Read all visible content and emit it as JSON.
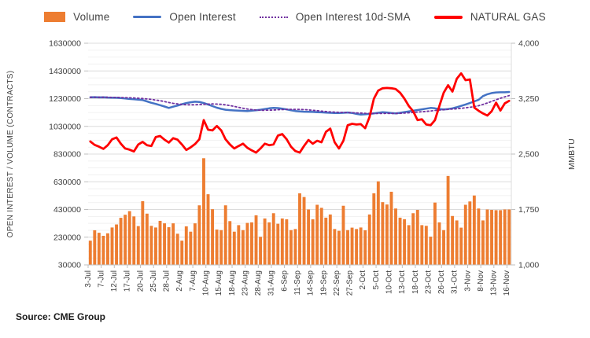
{
  "legend": [
    {
      "label": "Volume",
      "type": "bar",
      "color": "#ED7D31"
    },
    {
      "label": "Open Interest",
      "type": "line",
      "color": "#4472C4"
    },
    {
      "label": "Open Interest 10d-SMA",
      "type": "dotted",
      "color": "#7030A0"
    },
    {
      "label": "NATURAL GAS",
      "type": "line-thick",
      "color": "#FF0000"
    }
  ],
  "source": "Source: CME Group",
  "chart_data": {
    "type": "bar",
    "subtype": "combo-bar-line",
    "title": "",
    "xlabel": "",
    "left_axis": {
      "title": "OPEN INTEREST / VOLUME (CONTRACTS)",
      "min": 30000,
      "max": 1630000,
      "major_step": 200000,
      "minor_step": 50000,
      "tick_labels": [
        "1630000",
        "1430000",
        "1230000",
        "1030000",
        "830000",
        "630000",
        "430000",
        "230000",
        "30000"
      ]
    },
    "right_axis": {
      "title": "MMBTU",
      "min": 1000,
      "max": 4000,
      "major_step": 750,
      "tick_labels": [
        "4,000",
        "3,250",
        "2,500",
        "1,750",
        "1,000"
      ]
    },
    "x_label_every": 3,
    "x_labels_shown": [
      "3-Jul",
      "7-Jul",
      "12-Jul",
      "17-Jul",
      "20-Jul",
      "25-Jul",
      "28-Jul",
      "2-Aug",
      "7-Aug",
      "10-Aug",
      "15-Aug",
      "18-Aug",
      "23-Aug",
      "28-Aug",
      "31-Aug",
      "6-Sep",
      "11-Sep",
      "14-Sep",
      "19-Sep",
      "22-Sep",
      "27-Sep",
      "2-Oct",
      "5-Oct",
      "10-Oct",
      "13-Oct",
      "18-Oct",
      "23-Oct",
      "26-Oct",
      "31-Oct",
      "3-Nov",
      "8-Nov",
      "13-Nov",
      "16-Nov"
    ],
    "series": [
      {
        "name": "Volume",
        "type": "bar",
        "axis": "left",
        "color": "#ED7D31",
        "values": [
          205000,
          280000,
          262000,
          240000,
          258000,
          300000,
          322000,
          370000,
          392000,
          418000,
          380000,
          310000,
          490000,
          400000,
          312000,
          300000,
          348000,
          330000,
          302000,
          330000,
          255000,
          205000,
          308000,
          270000,
          330000,
          460000,
          800000,
          540000,
          432000,
          285000,
          281000,
          460000,
          346000,
          270000,
          317000,
          281000,
          333000,
          337000,
          388000,
          233000,
          365000,
          337000,
          403000,
          327000,
          365000,
          359000,
          281000,
          289000,
          547000,
          520000,
          430000,
          359000,
          464000,
          442000,
          371000,
          394000,
          289000,
          276000,
          457000,
          281000,
          299000,
          289000,
          300000,
          280000,
          394000,
          547000,
          633000,
          483000,
          466000,
          558000,
          437000,
          371000,
          360000,
          317000,
          403000,
          427000,
          317000,
          312000,
          234000,
          480000,
          337000,
          281000,
          672000,
          383000,
          351000,
          299000,
          464000,
          488000,
          531000,
          437000,
          351000,
          430000,
          427000,
          425000,
          425000,
          430000,
          430000
        ]
      },
      {
        "name": "Open Interest",
        "type": "line",
        "axis": "left",
        "color": "#4472C4",
        "values": [
          1240000,
          1241000,
          1239000,
          1240000,
          1238000,
          1237000,
          1236000,
          1234000,
          1231000,
          1228000,
          1226000,
          1223000,
          1220000,
          1210000,
          1200000,
          1192000,
          1183000,
          1173000,
          1163000,
          1172000,
          1180000,
          1190000,
          1198000,
          1204000,
          1208000,
          1206000,
          1198000,
          1188000,
          1176000,
          1165000,
          1156000,
          1150000,
          1147000,
          1145000,
          1143000,
          1142000,
          1141000,
          1143000,
          1146000,
          1150000,
          1155000,
          1160000,
          1163000,
          1162000,
          1158000,
          1152000,
          1146000,
          1141000,
          1138000,
          1136000,
          1135000,
          1134000,
          1132000,
          1131000,
          1129000,
          1128000,
          1127000,
          1126000,
          1128000,
          1130000,
          1127000,
          1120000,
          1115000,
          1117000,
          1120000,
          1124000,
          1128000,
          1132000,
          1130000,
          1126000,
          1124000,
          1128000,
          1133000,
          1138000,
          1143000,
          1148000,
          1153000,
          1158000,
          1163000,
          1160000,
          1155000,
          1152000,
          1155000,
          1160000,
          1168000,
          1178000,
          1188000,
          1198000,
          1210000,
          1222000,
          1248000,
          1262000,
          1270000,
          1275000,
          1276000,
          1276000,
          1278000
        ]
      },
      {
        "name": "Open Interest 10d-SMA",
        "type": "line-dotted",
        "axis": "left",
        "color": "#7030A0",
        "values": [
          1240000,
          1241000,
          1240000,
          1240000,
          1240000,
          1239000,
          1239000,
          1238000,
          1237000,
          1236000,
          1235000,
          1233000,
          1231000,
          1228000,
          1225000,
          1220000,
          1215000,
          1209000,
          1202000,
          1196000,
          1192000,
          1188000,
          1186000,
          1186000,
          1186000,
          1188000,
          1189000,
          1191000,
          1192000,
          1191000,
          1189000,
          1185000,
          1180000,
          1174000,
          1167000,
          1161000,
          1155000,
          1151000,
          1148000,
          1146000,
          1146000,
          1147000,
          1148000,
          1150000,
          1151000,
          1152000,
          1153000,
          1153000,
          1152000,
          1151000,
          1149000,
          1146000,
          1143000,
          1140000,
          1137000,
          1134000,
          1133000,
          1131000,
          1130000,
          1129000,
          1129000,
          1127000,
          1126000,
          1124000,
          1123000,
          1123000,
          1123000,
          1123000,
          1124000,
          1123000,
          1123000,
          1124000,
          1126000,
          1128000,
          1130000,
          1133000,
          1136000,
          1138000,
          1141000,
          1145000,
          1148000,
          1150000,
          1153000,
          1155000,
          1157000,
          1160000,
          1164000,
          1168000,
          1172000,
          1179000,
          1188000,
          1199000,
          1210000,
          1222000,
          1233000,
          1243000,
          1252000
        ]
      },
      {
        "name": "NATURAL GAS",
        "type": "line",
        "axis": "right",
        "color": "#FF0000",
        "values": [
          2670,
          2625,
          2600,
          2570,
          2620,
          2700,
          2725,
          2640,
          2575,
          2560,
          2535,
          2630,
          2665,
          2620,
          2610,
          2730,
          2745,
          2695,
          2655,
          2715,
          2695,
          2630,
          2555,
          2590,
          2635,
          2700,
          2960,
          2830,
          2820,
          2880,
          2820,
          2700,
          2630,
          2575,
          2610,
          2640,
          2585,
          2550,
          2520,
          2575,
          2640,
          2620,
          2630,
          2750,
          2770,
          2700,
          2600,
          2540,
          2520,
          2610,
          2690,
          2640,
          2680,
          2660,
          2800,
          2845,
          2660,
          2575,
          2680,
          2890,
          2910,
          2900,
          2905,
          2850,
          3000,
          3250,
          3360,
          3390,
          3395,
          3390,
          3380,
          3330,
          3250,
          3150,
          3080,
          2960,
          2970,
          2900,
          2890,
          2960,
          3150,
          3330,
          3432,
          3346,
          3520,
          3593,
          3500,
          3510,
          3129,
          3086,
          3050,
          3021,
          3080,
          3196,
          3089,
          3186,
          3220
        ]
      }
    ],
    "legend_position": "top",
    "grid": true
  }
}
